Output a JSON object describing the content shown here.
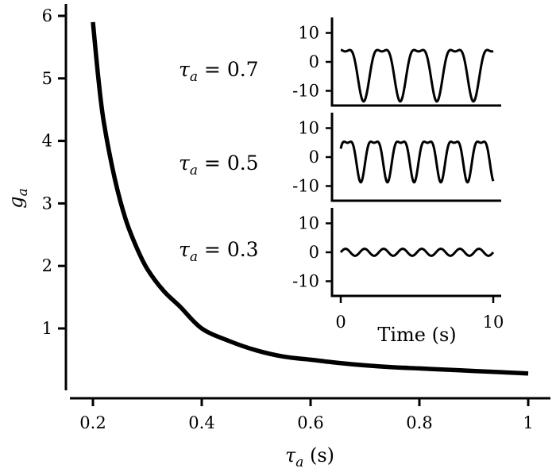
{
  "chart_data": [
    {
      "type": "line",
      "xlabel": "τa (s)",
      "xlabel_parts": {
        "symbol": "τ",
        "sub": "a",
        "unit": " (s)"
      },
      "ylabel": "ga",
      "ylabel_parts": {
        "symbol": "g",
        "sub": "a"
      },
      "xlim": [
        0.15,
        1.05
      ],
      "ylim": [
        -0.1,
        6.15
      ],
      "xticks": [
        0.2,
        0.4,
        0.6,
        0.8,
        1.0
      ],
      "xtick_labels": [
        "0.2",
        "0.4",
        "0.6",
        "0.8",
        "1"
      ],
      "yticks": [
        1,
        2,
        3,
        4,
        5,
        6
      ],
      "ytick_labels": [
        "1",
        "2",
        "3",
        "4",
        "5",
        "6"
      ],
      "series": [
        {
          "x": [
            0.2,
            0.21,
            0.22,
            0.24,
            0.26,
            0.28,
            0.3,
            0.33,
            0.36,
            0.4,
            0.45,
            0.5,
            0.55,
            0.6,
            0.65,
            0.7,
            0.75,
            0.8,
            0.85,
            0.9,
            0.95,
            1.0
          ],
          "y": [
            5.9,
            5.0,
            4.3,
            3.4,
            2.75,
            2.3,
            1.95,
            1.6,
            1.35,
            1.0,
            0.8,
            0.65,
            0.55,
            0.5,
            0.45,
            0.41,
            0.38,
            0.36,
            0.34,
            0.32,
            0.3,
            0.28
          ]
        }
      ]
    },
    {
      "type": "line",
      "panel": "inset",
      "xlabel": "Time (s)",
      "xticks": [
        0,
        10
      ],
      "xtick_labels": [
        "0",
        "10"
      ],
      "yticks": [
        10,
        0,
        -10
      ],
      "ytick_labels": [
        "10",
        "0",
        "-10"
      ],
      "xlim": [
        -0.5,
        10.5
      ],
      "ylim": [
        -15,
        15
      ],
      "panels": [
        {
          "tau_label": "τa = 0.7",
          "symbol": "τ",
          "sub": "a",
          "value": " = 0.7",
          "amplitude": 9.5,
          "offset": -2,
          "period": 2.4,
          "phase": -0.3
        },
        {
          "tau_label": "τa = 0.5",
          "symbol": "τ",
          "sub": "a",
          "value": " = 0.5",
          "amplitude": 7.5,
          "offset": 0.5,
          "period": 1.75,
          "phase": 0.0
        },
        {
          "tau_label": "τa = 0.3",
          "symbol": "τ",
          "sub": "a",
          "value": " = 0.3",
          "amplitude": 1.2,
          "offset": 0,
          "period": 1.25,
          "phase": 0.0
        }
      ]
    }
  ]
}
